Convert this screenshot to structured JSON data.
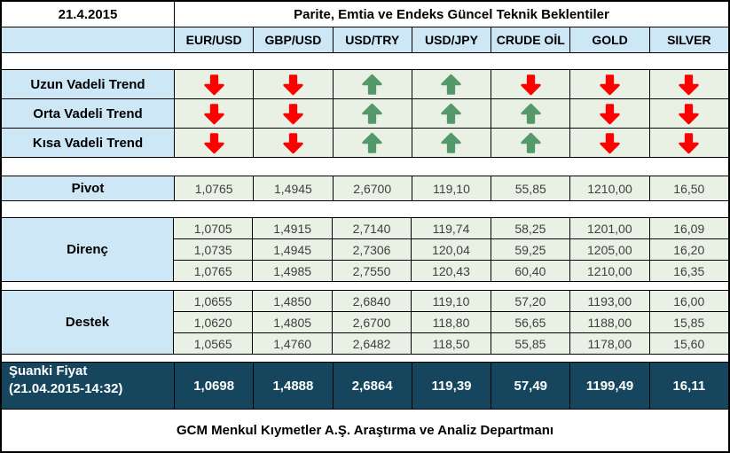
{
  "header": {
    "date": "21.4.2015",
    "title": "Parite, Emtia ve Endeks Güncel Teknik Beklentiler"
  },
  "columns": [
    "EUR/USD",
    "GBP/USD",
    "USD/TRY",
    "USD/JPY",
    "CRUDE OİL",
    "GOLD",
    "SILVER"
  ],
  "trend_rows": [
    {
      "label": "Uzun Vadeli Trend",
      "directions": [
        "down",
        "down",
        "up",
        "up",
        "down",
        "down",
        "down"
      ]
    },
    {
      "label": "Orta Vadeli Trend",
      "directions": [
        "down",
        "down",
        "up",
        "up",
        "up",
        "down",
        "down"
      ]
    },
    {
      "label": "Kısa Vadeli Trend",
      "directions": [
        "down",
        "down",
        "up",
        "up",
        "up",
        "down",
        "down"
      ]
    }
  ],
  "pivot": {
    "label": "Pivot",
    "values": [
      "1,0765",
      "1,4945",
      "2,6700",
      "119,10",
      "55,85",
      "1210,00",
      "16,50"
    ]
  },
  "resistance": {
    "label": "Direnç",
    "rows": [
      [
        "1,0705",
        "1,4915",
        "2,7140",
        "119,74",
        "58,25",
        "1201,00",
        "16,09"
      ],
      [
        "1,0735",
        "1,4945",
        "2,7306",
        "120,04",
        "59,25",
        "1205,00",
        "16,20"
      ],
      [
        "1,0765",
        "1,4985",
        "2,7550",
        "120,43",
        "60,40",
        "1210,00",
        "16,35"
      ]
    ]
  },
  "support": {
    "label": "Destek",
    "rows": [
      [
        "1,0655",
        "1,4850",
        "2,6840",
        "119,10",
        "57,20",
        "1193,00",
        "16,00"
      ],
      [
        "1,0620",
        "1,4805",
        "2,6700",
        "118,80",
        "56,65",
        "1188,00",
        "15,85"
      ],
      [
        "1,0565",
        "1,4760",
        "2,6482",
        "118,50",
        "55,85",
        "1178,00",
        "15,60"
      ]
    ]
  },
  "current_price": {
    "label_line1": "Şuanki Fiyat",
    "label_line2": "(21.04.2015-14:32)",
    "values": [
      "1,0698",
      "1,4888",
      "2,6864",
      "119,39",
      "57,49",
      "1199,49",
      "16,11"
    ]
  },
  "footer": "GCM Menkul Kıymetler A.Ş. Araştırma ve Analiz Departmanı",
  "colors": {
    "up_arrow": "#55996b",
    "down_arrow": "#fe0000",
    "header_bg": "#cde7f6",
    "cell_bg": "#e9f1e5",
    "current_row_bg": "#15465e",
    "border": "#000000",
    "value_text": "#404040"
  }
}
